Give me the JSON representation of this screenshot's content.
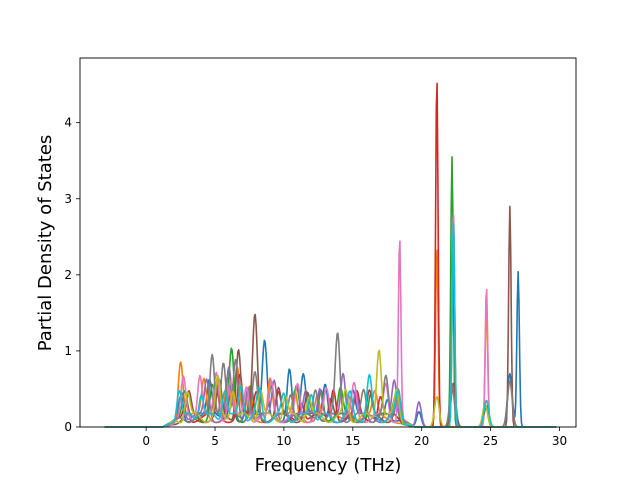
{
  "chart_data": {
    "type": "line",
    "title": "",
    "xlabel": "Frequency (THz)",
    "ylabel": "Partial Density of States",
    "xlim": [
      -4.8,
      31.2
    ],
    "ylim": [
      0,
      4.85
    ],
    "xticks": [
      0,
      5,
      10,
      15,
      20,
      25,
      30
    ],
    "yticks": [
      0,
      1,
      2,
      3,
      4
    ],
    "grid": false,
    "legend": "none",
    "series": [
      {
        "color": "#1f77b4",
        "peaks": [
          [
            2.5,
            0.35
          ],
          [
            4.6,
            0.45
          ],
          [
            6.2,
            0.5
          ],
          [
            7.4,
            0.35
          ],
          [
            8.6,
            0.97
          ],
          [
            10.4,
            0.7
          ],
          [
            11.4,
            0.55
          ],
          [
            13.0,
            0.45
          ],
          [
            15.0,
            0.35
          ],
          [
            17.5,
            0.3
          ],
          [
            19.8,
            0.2
          ],
          [
            22.3,
            2.8
          ],
          [
            26.4,
            0.7
          ],
          [
            27.0,
            2.04
          ]
        ]
      },
      {
        "color": "#ff7f0e",
        "peaks": [
          [
            2.5,
            0.78
          ],
          [
            4.2,
            0.5
          ],
          [
            5.9,
            0.55
          ],
          [
            6.6,
            0.62
          ],
          [
            7.5,
            0.4
          ],
          [
            9.0,
            0.55
          ],
          [
            10.8,
            0.35
          ],
          [
            12.4,
            0.3
          ],
          [
            14.7,
            0.35
          ],
          [
            16.6,
            0.3
          ],
          [
            21.1,
            2.38
          ],
          [
            24.7,
            1.62
          ]
        ]
      },
      {
        "color": "#2ca02c",
        "peaks": [
          [
            2.8,
            0.3
          ],
          [
            4.8,
            0.45
          ],
          [
            6.2,
            0.9
          ],
          [
            7.6,
            0.45
          ],
          [
            9.1,
            0.4
          ],
          [
            10.9,
            0.4
          ],
          [
            12.7,
            0.42
          ],
          [
            14.1,
            0.35
          ],
          [
            16.3,
            0.35
          ],
          [
            18.1,
            0.3
          ],
          [
            22.2,
            3.55
          ]
        ]
      },
      {
        "color": "#d62728",
        "peaks": [
          [
            2.9,
            0.25
          ],
          [
            5.1,
            0.4
          ],
          [
            6.8,
            0.55
          ],
          [
            8.0,
            0.35
          ],
          [
            9.6,
            0.3
          ],
          [
            11.3,
            0.25
          ],
          [
            13.6,
            0.42
          ],
          [
            15.3,
            0.3
          ],
          [
            17.0,
            0.3
          ],
          [
            21.1,
            4.63
          ],
          [
            24.7,
            0.28
          ]
        ]
      },
      {
        "color": "#9467bd",
        "peaks": [
          [
            2.6,
            0.4
          ],
          [
            4.4,
            0.5
          ],
          [
            6.0,
            0.62
          ],
          [
            7.4,
            0.45
          ],
          [
            9.3,
            0.5
          ],
          [
            11.6,
            0.35
          ],
          [
            12.6,
            0.42
          ],
          [
            14.3,
            0.62
          ],
          [
            15.2,
            0.35
          ],
          [
            18.0,
            0.45
          ],
          [
            19.8,
            0.33
          ]
        ]
      },
      {
        "color": "#8c564b",
        "peaks": [
          [
            3.1,
            0.3
          ],
          [
            5.3,
            0.45
          ],
          [
            6.7,
            0.95
          ],
          [
            7.9,
            1.33
          ],
          [
            9.6,
            0.35
          ],
          [
            11.7,
            0.3
          ],
          [
            13.4,
            0.3
          ],
          [
            16.2,
            0.32
          ],
          [
            18.2,
            0.3
          ],
          [
            22.3,
            0.58
          ],
          [
            26.4,
            2.9
          ]
        ]
      },
      {
        "color": "#e377c2",
        "peaks": [
          [
            2.7,
            0.5
          ],
          [
            3.9,
            0.6
          ],
          [
            5.1,
            0.58
          ],
          [
            6.1,
            0.5
          ],
          [
            7.3,
            0.42
          ],
          [
            9.1,
            0.45
          ],
          [
            11.0,
            0.4
          ],
          [
            13.1,
            0.35
          ],
          [
            15.1,
            0.42
          ],
          [
            17.4,
            0.45
          ],
          [
            18.4,
            2.42
          ],
          [
            22.3,
            2.85
          ],
          [
            24.7,
            1.85
          ]
        ]
      },
      {
        "color": "#7f7f7f",
        "peaks": [
          [
            4.8,
            0.88
          ],
          [
            5.6,
            0.7
          ],
          [
            6.5,
            0.78
          ],
          [
            7.9,
            0.55
          ],
          [
            10.5,
            0.35
          ],
          [
            12.3,
            0.4
          ],
          [
            13.9,
            1.1
          ],
          [
            15.8,
            0.35
          ],
          [
            17.4,
            0.5
          ],
          [
            18.3,
            0.45
          ],
          [
            22.2,
            0.55
          ],
          [
            26.4,
            0.6
          ]
        ]
      },
      {
        "color": "#bcbd22",
        "peaks": [
          [
            3.0,
            0.35
          ],
          [
            5.2,
            0.5
          ],
          [
            6.3,
            0.4
          ],
          [
            8.3,
            0.38
          ],
          [
            10.1,
            0.3
          ],
          [
            11.8,
            0.3
          ],
          [
            14.5,
            0.35
          ],
          [
            16.9,
            0.95
          ],
          [
            18.2,
            0.4
          ],
          [
            21.1,
            0.4
          ],
          [
            24.6,
            0.3
          ]
        ]
      },
      {
        "color": "#17becf",
        "peaks": [
          [
            2.4,
            0.42
          ],
          [
            4.0,
            0.35
          ],
          [
            5.7,
            0.4
          ],
          [
            6.9,
            0.45
          ],
          [
            8.2,
            0.35
          ],
          [
            10.0,
            0.3
          ],
          [
            12.0,
            0.35
          ],
          [
            14.8,
            0.3
          ],
          [
            16.2,
            0.52
          ],
          [
            18.3,
            0.35
          ],
          [
            22.3,
            2.75
          ],
          [
            24.7,
            0.35
          ]
        ]
      }
    ]
  }
}
